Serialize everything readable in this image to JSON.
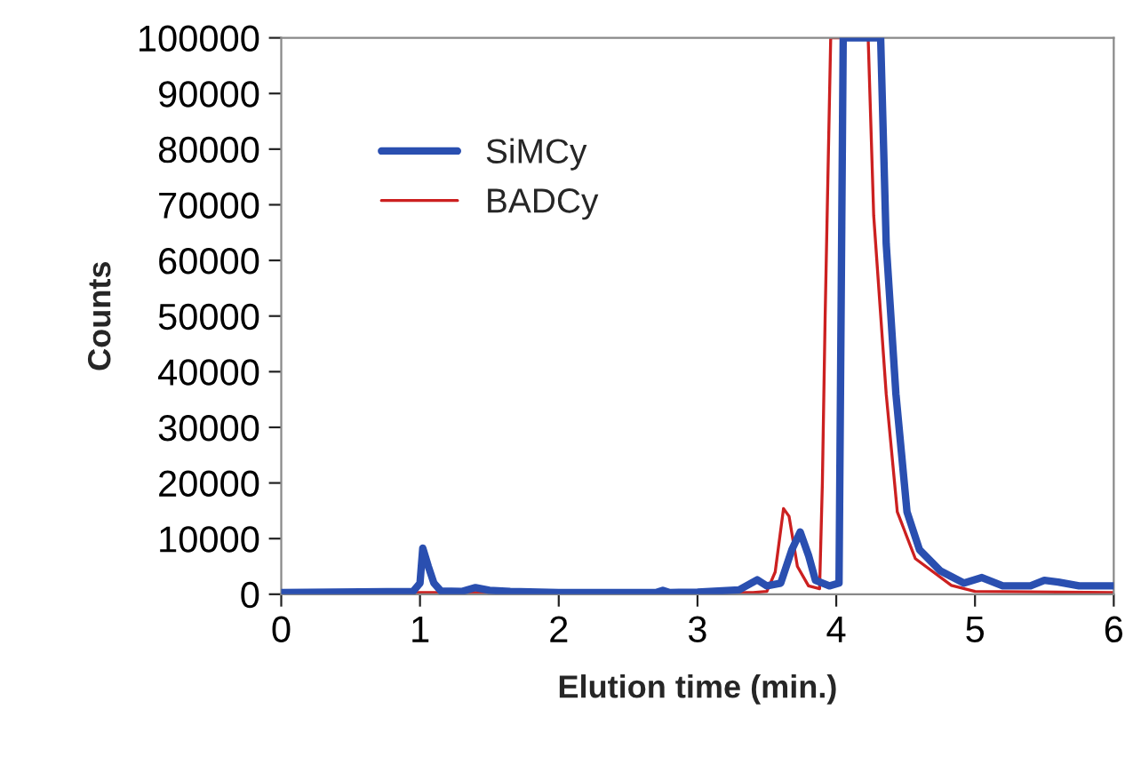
{
  "chart_data": {
    "type": "line",
    "xlabel": "Elution time (min.)",
    "ylabel": "Counts",
    "xlim": [
      0,
      6
    ],
    "xticks": [
      0,
      1,
      2,
      3,
      4,
      5,
      6
    ],
    "ylim": [
      0,
      100000
    ],
    "yticks": [
      0,
      10000,
      20000,
      30000,
      40000,
      50000,
      60000,
      70000,
      80000,
      90000,
      100000
    ],
    "grid": false,
    "legend": "top left",
    "marker": "none",
    "line_style": "solid",
    "series": [
      {
        "name": "SiMCy",
        "color": "#2a4fb0",
        "x": [
          0,
          0.95,
          1.0,
          1.02,
          1.06,
          1.1,
          1.15,
          1.3,
          1.4,
          1.5,
          1.65,
          2.0,
          2.7,
          2.75,
          2.8,
          3.0,
          3.3,
          3.43,
          3.5,
          3.6,
          3.68,
          3.74,
          3.8,
          3.85,
          3.95,
          4.02,
          4.05,
          4.32,
          4.36,
          4.43,
          4.51,
          4.6,
          4.75,
          4.92,
          5.05,
          5.2,
          5.4,
          5.5,
          5.6,
          5.75,
          6.0
        ],
        "values": [
          300,
          500,
          2000,
          8300,
          5000,
          2000,
          600,
          500,
          1200,
          700,
          500,
          300,
          300,
          700,
          300,
          400,
          800,
          2600,
          1500,
          2000,
          8000,
          11200,
          7000,
          2500,
          1500,
          2000,
          100000,
          100000,
          63000,
          36000,
          14800,
          8000,
          4200,
          2000,
          3000,
          1500,
          1500,
          2500,
          2200,
          1500,
          1500
        ]
      },
      {
        "name": "BADCy",
        "color": "#cc2020",
        "x": [
          0,
          1.0,
          2.7,
          2.75,
          2.8,
          3.4,
          3.5,
          3.56,
          3.62,
          3.66,
          3.72,
          3.8,
          3.88,
          3.9,
          3.92,
          3.96,
          4.23,
          4.27,
          4.36,
          4.44,
          4.57,
          4.83,
          5.0,
          6.0
        ],
        "values": [
          300,
          300,
          300,
          700,
          300,
          300,
          500,
          4000,
          15400,
          14000,
          5000,
          1500,
          1000,
          20000,
          50000,
          100000,
          100000,
          68000,
          36000,
          14800,
          6400,
          1600,
          500,
          300
        ]
      }
    ]
  }
}
